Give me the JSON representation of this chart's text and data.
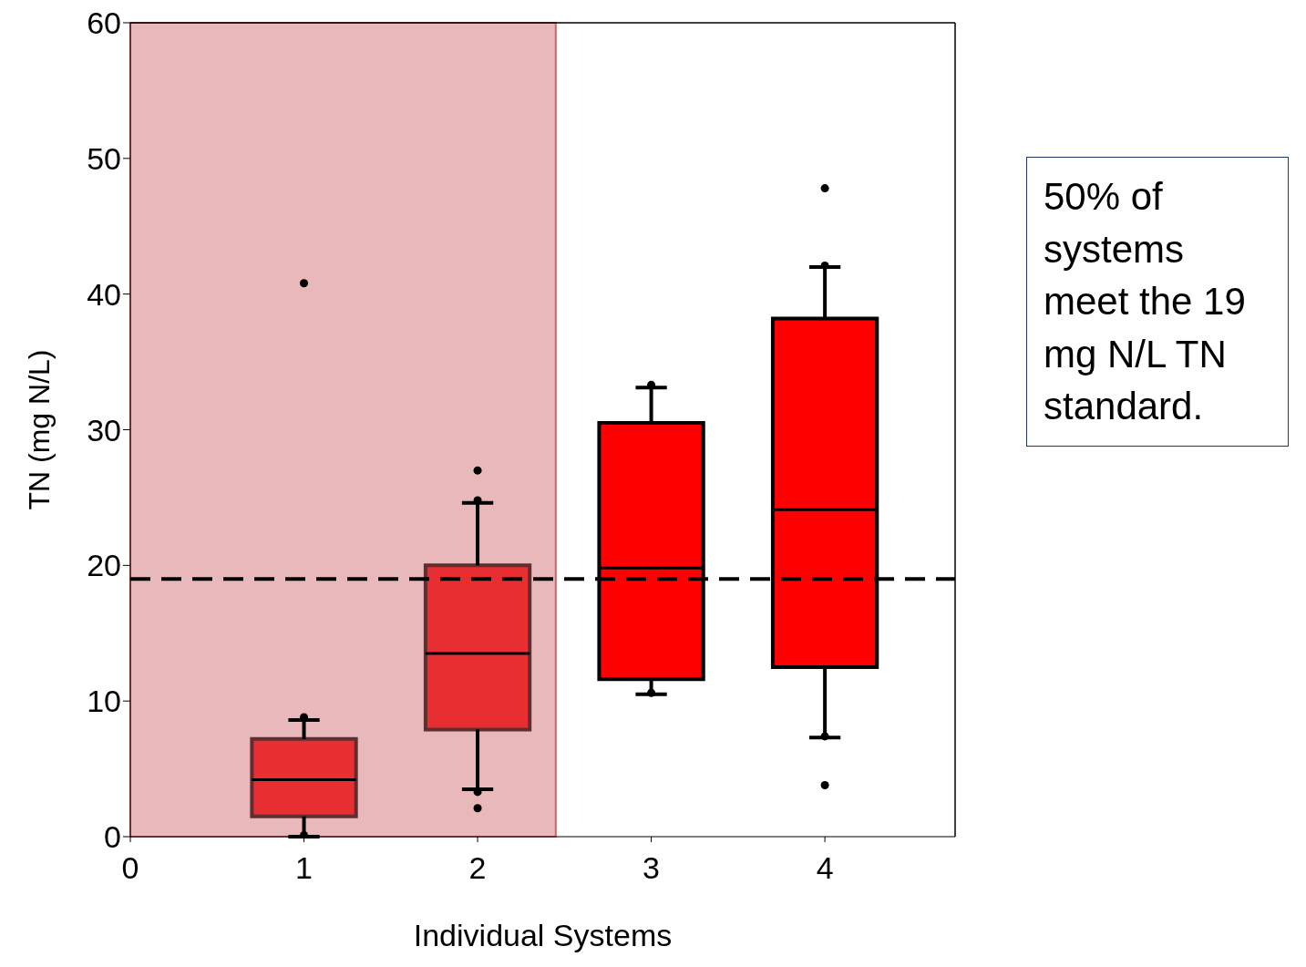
{
  "chart_data": {
    "type": "box",
    "xlabel": "Individual Systems",
    "ylabel": "TN (mg N/L)",
    "x": [
      1,
      2,
      3,
      4
    ],
    "color": "#ff0000",
    "boxes": [
      {
        "low": 0,
        "q1": 1.5,
        "median": 4.2,
        "q3": 7.2,
        "high": 8.6,
        "outliers": [
          0.1,
          8.8,
          40.8
        ]
      },
      {
        "low": 3.5,
        "q1": 7.9,
        "median": 13.5,
        "q3": 20.0,
        "high": 24.6,
        "outliers": [
          2.1,
          3.3,
          24.8,
          27.0
        ]
      },
      {
        "low": 10.5,
        "q1": 11.6,
        "median": 19.8,
        "q3": 30.5,
        "high": 33.1,
        "outliers": [
          10.6,
          33.3
        ]
      },
      {
        "low": 7.3,
        "q1": 12.5,
        "median": 24.1,
        "q3": 38.2,
        "high": 42.0,
        "outliers": [
          3.8,
          7.4,
          42.1,
          47.8
        ]
      }
    ],
    "xlim": [
      0,
      4.75
    ],
    "xticks": [
      0,
      1,
      2,
      3,
      4
    ],
    "ylim": [
      0,
      60
    ],
    "yticks": [
      0,
      10,
      20,
      30,
      40,
      50,
      60
    ],
    "marker": "circle",
    "ref_lines": [
      {
        "axis": "y",
        "value": 19,
        "color": "#000000",
        "line_style": "dashed"
      }
    ],
    "bands": [
      {
        "axis": "x",
        "from": 0,
        "to": 2.45,
        "color": "#cd646b"
      }
    ],
    "annotations": [
      "50% of systems meet the 19 mg N/L TN standard."
    ]
  }
}
